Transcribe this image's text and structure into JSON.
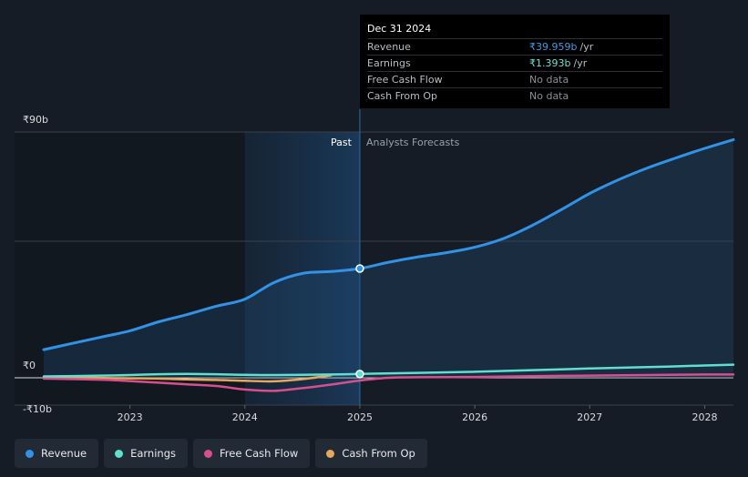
{
  "tooltip": {
    "date": "Dec 31 2024",
    "rows": [
      {
        "label": "Revenue",
        "value": "₹39.959b",
        "unit": "/yr",
        "color": "#3d9ce8"
      },
      {
        "label": "Earnings",
        "value": "₹1.393b",
        "unit": "/yr",
        "color": "#6de2cf"
      },
      {
        "label": "Free Cash Flow",
        "value": "No data",
        "unit": "",
        "color": "#8a8f98"
      },
      {
        "label": "Cash From Op",
        "value": "No data",
        "unit": "",
        "color": "#8a8f98"
      }
    ]
  },
  "legend": [
    {
      "label": "Revenue",
      "color": "#3192e6"
    },
    {
      "label": "Earnings",
      "color": "#5fe0cf"
    },
    {
      "label": "Free Cash Flow",
      "color": "#d64f8e"
    },
    {
      "label": "Cash From Op",
      "color": "#e8a85b"
    }
  ],
  "chart_data": {
    "type": "line",
    "title": "",
    "y_tick_labels": [
      "₹90b",
      "₹0",
      "-₹10b"
    ],
    "y_ticks": [
      90,
      0,
      -10
    ],
    "ylim": [
      -10,
      90
    ],
    "xlim": [
      2022.25,
      2028.25
    ],
    "x_ticks": [
      2023,
      2024,
      2025,
      2026,
      2027,
      2028
    ],
    "x_tick_labels": [
      "2023",
      "2024",
      "2025",
      "2026",
      "2027",
      "2028"
    ],
    "past_label": "Past",
    "forecast_label": "Analysts Forecasts",
    "past_start": 2024.0,
    "divider_x": 2025.0,
    "series": [
      {
        "name": "Revenue",
        "color": "#3192e6",
        "points": [
          [
            2022.25,
            10.3
          ],
          [
            2022.5,
            12.6
          ],
          [
            2022.75,
            14.9
          ],
          [
            2023.0,
            17.2
          ],
          [
            2023.25,
            20.5
          ],
          [
            2023.5,
            23.2
          ],
          [
            2023.75,
            26.2
          ],
          [
            2024.0,
            28.8
          ],
          [
            2024.25,
            34.8
          ],
          [
            2024.5,
            38.2
          ],
          [
            2024.75,
            38.9
          ],
          [
            2025.0,
            40.0
          ],
          [
            2025.25,
            42.3
          ],
          [
            2025.5,
            44.2
          ],
          [
            2025.75,
            45.8
          ],
          [
            2026.0,
            47.8
          ],
          [
            2026.25,
            51.0
          ],
          [
            2026.5,
            55.8
          ],
          [
            2026.75,
            61.5
          ],
          [
            2027.0,
            67.5
          ],
          [
            2027.25,
            72.5
          ],
          [
            2027.5,
            76.8
          ],
          [
            2027.75,
            80.5
          ],
          [
            2028.0,
            84.0
          ],
          [
            2028.25,
            87.2
          ]
        ]
      },
      {
        "name": "Earnings",
        "color": "#5fe0cf",
        "points": [
          [
            2022.25,
            0.5
          ],
          [
            2022.75,
            0.8
          ],
          [
            2023.0,
            1.0
          ],
          [
            2023.25,
            1.3
          ],
          [
            2023.5,
            1.4
          ],
          [
            2023.75,
            1.3
          ],
          [
            2024.0,
            1.1
          ],
          [
            2024.25,
            1.0
          ],
          [
            2024.5,
            1.1
          ],
          [
            2024.75,
            1.2
          ],
          [
            2025.0,
            1.39
          ],
          [
            2025.5,
            1.8
          ],
          [
            2026.0,
            2.2
          ],
          [
            2026.5,
            2.8
          ],
          [
            2027.0,
            3.4
          ],
          [
            2027.5,
            3.9
          ],
          [
            2028.0,
            4.5
          ],
          [
            2028.25,
            4.8
          ]
        ]
      },
      {
        "name": "Free Cash Flow",
        "color": "#d64f8e",
        "points": [
          [
            2022.25,
            -0.3
          ],
          [
            2022.75,
            -0.7
          ],
          [
            2023.0,
            -1.2
          ],
          [
            2023.25,
            -1.8
          ],
          [
            2023.5,
            -2.4
          ],
          [
            2023.75,
            -3.0
          ],
          [
            2024.0,
            -4.3
          ],
          [
            2024.25,
            -4.8
          ],
          [
            2024.5,
            -3.8
          ],
          [
            2024.75,
            -2.5
          ],
          [
            2025.0,
            -1.0
          ],
          [
            2025.25,
            0.0
          ],
          [
            2025.5,
            0.2
          ],
          [
            2026.0,
            0.3
          ],
          [
            2026.5,
            0.6
          ],
          [
            2027.0,
            0.8
          ],
          [
            2027.5,
            1.0
          ],
          [
            2028.0,
            1.2
          ],
          [
            2028.25,
            1.2
          ]
        ]
      },
      {
        "name": "Cash From Op",
        "color": "#e8a85b",
        "points": [
          [
            2022.25,
            0.0
          ],
          [
            2022.75,
            -0.1
          ],
          [
            2023.0,
            -0.2
          ],
          [
            2023.25,
            -0.3
          ],
          [
            2023.5,
            -0.6
          ],
          [
            2023.75,
            -0.8
          ],
          [
            2024.0,
            -1.1
          ],
          [
            2024.25,
            -1.3
          ],
          [
            2024.5,
            -0.5
          ],
          [
            2024.75,
            0.9
          ]
        ]
      }
    ],
    "highlight": {
      "x": 2025.0,
      "values": [
        {
          "series": "Revenue",
          "y": 40.0
        },
        {
          "series": "Earnings",
          "y": 1.39
        }
      ]
    }
  }
}
